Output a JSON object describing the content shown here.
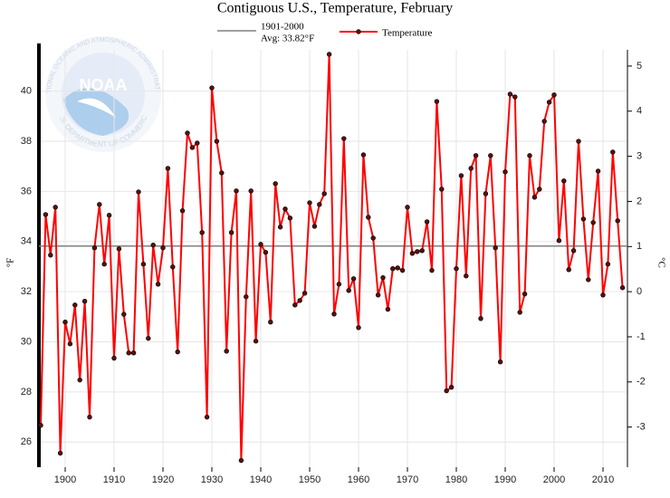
{
  "chart_data": {
    "type": "line",
    "title": "Contiguous U.S., Temperature, February",
    "y_label": "°F",
    "y2_label": "°C",
    "x": [
      1895,
      1896,
      1897,
      1898,
      1899,
      1900,
      1901,
      1902,
      1903,
      1904,
      1905,
      1906,
      1907,
      1908,
      1909,
      1910,
      1911,
      1912,
      1913,
      1914,
      1915,
      1916,
      1917,
      1918,
      1919,
      1920,
      1921,
      1922,
      1923,
      1924,
      1925,
      1926,
      1927,
      1928,
      1929,
      1930,
      1931,
      1932,
      1933,
      1934,
      1935,
      1936,
      1937,
      1938,
      1939,
      1940,
      1941,
      1942,
      1943,
      1944,
      1945,
      1946,
      1947,
      1948,
      1949,
      1950,
      1951,
      1952,
      1953,
      1954,
      1955,
      1956,
      1957,
      1958,
      1959,
      1960,
      1961,
      1962,
      1963,
      1964,
      1965,
      1966,
      1967,
      1968,
      1969,
      1970,
      1971,
      1972,
      1973,
      1974,
      1975,
      1976,
      1977,
      1978,
      1979,
      1980,
      1981,
      1982,
      1983,
      1984,
      1985,
      1986,
      1987,
      1988,
      1989,
      1990,
      1991,
      1992,
      1993,
      1994,
      1995,
      1996,
      1997,
      1998,
      1999,
      2000,
      2001,
      2002,
      2003,
      2004,
      2005,
      2006,
      2007,
      2008,
      2009,
      2010,
      2011,
      2012,
      2013,
      2014
    ],
    "series": [
      {
        "name": "Temperature",
        "color": "#ff0000",
        "marker_color": "#5a1010",
        "values": [
          26.67,
          35.08,
          33.46,
          35.37,
          25.56,
          30.79,
          29.92,
          31.47,
          28.48,
          31.62,
          27.0,
          33.75,
          35.48,
          33.1,
          35.05,
          29.35,
          33.71,
          31.1,
          29.56,
          29.56,
          35.98,
          33.1,
          30.14,
          33.86,
          32.3,
          33.75,
          36.92,
          32.99,
          29.6,
          35.23,
          38.33,
          37.75,
          37.93,
          34.36,
          27.0,
          40.13,
          38.0,
          36.74,
          29.63,
          34.36,
          36.02,
          25.27,
          31.8,
          36.02,
          30.03,
          33.89,
          33.57,
          30.79,
          36.31,
          34.58,
          35.3,
          34.94,
          31.47,
          31.65,
          31.94,
          35.55,
          34.61,
          35.48,
          35.91,
          41.47,
          31.11,
          32.3,
          38.11,
          32.05,
          32.52,
          30.57,
          37.46,
          34.97,
          34.14,
          31.87,
          32.56,
          31.3,
          32.92,
          32.95,
          32.85,
          35.37,
          33.53,
          33.6,
          33.64,
          34.79,
          32.85,
          39.59,
          36.09,
          28.05,
          28.19,
          32.92,
          36.63,
          32.63,
          36.92,
          37.43,
          30.93,
          35.91,
          37.43,
          33.75,
          29.2,
          36.78,
          39.88,
          39.77,
          31.18,
          31.91,
          37.43,
          35.77,
          36.09,
          38.8,
          39.56,
          39.85,
          34.04,
          36.42,
          32.88,
          33.64,
          38.0,
          34.9,
          32.48,
          34.76,
          36.81,
          31.87,
          33.1,
          37.57,
          34.83,
          32.16
        ]
      }
    ],
    "reference_line": {
      "name_lines": [
        "1901-2000",
        "Avg: 33.82°F"
      ],
      "value": 33.82,
      "color": "#808080"
    },
    "xlim": [
      1894.63,
      2015.0
    ],
    "xticks": [
      1900,
      1910,
      1920,
      1930,
      1940,
      1950,
      1960,
      1970,
      1980,
      1990,
      2000,
      2010
    ],
    "ylim": [
      25.0,
      41.65
    ],
    "yticks": [
      26,
      28,
      30,
      32,
      34,
      36,
      38,
      40
    ],
    "y2lim": [
      -3.89,
      5.36
    ],
    "y2ticks": [
      -3,
      -2,
      -1,
      0,
      1,
      2,
      3,
      4,
      5
    ],
    "grid": true,
    "logo": {
      "name": "NOAA",
      "ring_top": "NATIONAL OCEANIC AND ATMOSPHERIC ADMINISTRATION",
      "ring_bottom": "U.S. DEPARTMENT OF COMMERCE"
    }
  }
}
